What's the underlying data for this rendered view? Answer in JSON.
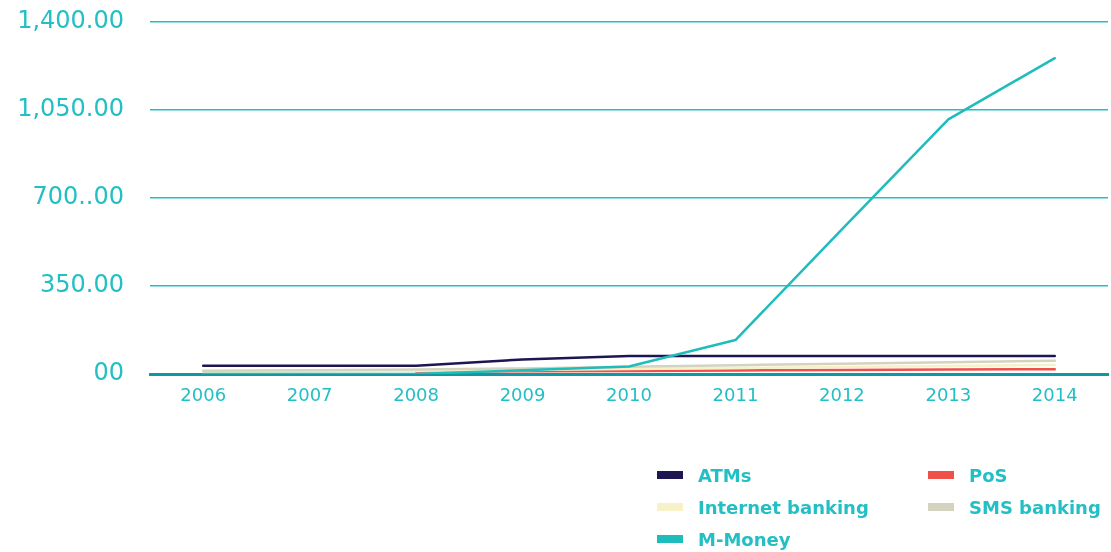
{
  "chart_data": {
    "type": "line",
    "categories": [
      "2006",
      "2007",
      "2008",
      "2009",
      "2010",
      "2011",
      "2012",
      "2013",
      "2014"
    ],
    "series": [
      {
        "name": "ATMs",
        "color": "#1e1650",
        "values": [
          33,
          33,
          33,
          58,
          72,
          72,
          72,
          72,
          72
        ]
      },
      {
        "name": "PoS",
        "color": "#f0504a",
        "values": [
          null,
          null,
          10,
          11,
          12,
          14,
          16,
          18,
          19
        ]
      },
      {
        "name": "Internet banking",
        "color": "#f7f1c8",
        "values": [
          8,
          10,
          13,
          16,
          20,
          24,
          28,
          32,
          36
        ]
      },
      {
        "name": "SMS banking",
        "color": "#d4d3c0",
        "values": [
          13,
          15,
          18,
          22,
          29,
          35,
          41,
          47,
          53
        ]
      },
      {
        "name": "M-Money",
        "color": "#1fbcbc",
        "values": [
          0,
          0,
          0,
          15,
          30,
          135,
          575,
          1013,
          1256
        ]
      }
    ],
    "ylim": [
      0,
      1400
    ],
    "yticks": [
      {
        "value": 0,
        "label": "00"
      },
      {
        "value": 350,
        "label": "350.00"
      },
      {
        "value": 700,
        "label": "700..00"
      },
      {
        "value": 1050,
        "label": "1,050.00"
      },
      {
        "value": 1400,
        "label": "1,400.00"
      }
    ],
    "grid": "y",
    "legend": "bottom right",
    "marker": "none",
    "line_style": "solid"
  }
}
